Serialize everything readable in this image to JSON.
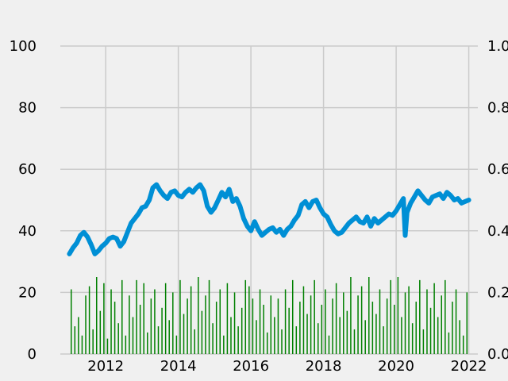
{
  "chart_data": {
    "type": "line",
    "title": "",
    "xlabel": "",
    "ylabel": "",
    "y2label": "",
    "xlim": [
      2010.75,
      2022.25
    ],
    "ylim": [
      0,
      100
    ],
    "y2lim": [
      0,
      1.0
    ],
    "x_ticks": [
      2012,
      2014,
      2016,
      2018,
      2020,
      2022
    ],
    "x_tick_labels": [
      "2012",
      "2014",
      "2016",
      "2018",
      "2020",
      "2022"
    ],
    "y_ticks": [
      0,
      20,
      40,
      60,
      80,
      100
    ],
    "y_tick_labels": [
      "0",
      "20",
      "40",
      "60",
      "80",
      "100"
    ],
    "y2_ticks": [
      0.0,
      0.2,
      0.4,
      0.6,
      0.8,
      1.0
    ],
    "y2_tick_labels": [
      "0.0",
      "0.2",
      "0.4",
      "0.6",
      "0.8",
      "1.0"
    ],
    "grid": true,
    "legend": "none",
    "series": [
      {
        "type": "line",
        "axis": "left",
        "color": "#008fd5",
        "x": [
          2011.0,
          2011.1,
          2011.2,
          2011.3,
          2011.4,
          2011.5,
          2011.6,
          2011.7,
          2011.8,
          2011.9,
          2012.0,
          2012.1,
          2012.2,
          2012.3,
          2012.4,
          2012.5,
          2012.6,
          2012.7,
          2012.8,
          2012.9,
          2013.0,
          2013.1,
          2013.2,
          2013.3,
          2013.4,
          2013.5,
          2013.6,
          2013.7,
          2013.8,
          2013.9,
          2014.0,
          2014.1,
          2014.2,
          2014.3,
          2014.4,
          2014.5,
          2014.6,
          2014.7,
          2014.8,
          2014.9,
          2015.0,
          2015.1,
          2015.2,
          2015.3,
          2015.4,
          2015.5,
          2015.6,
          2015.7,
          2015.8,
          2015.9,
          2016.0,
          2016.1,
          2016.2,
          2016.3,
          2016.4,
          2016.5,
          2016.6,
          2016.7,
          2016.8,
          2016.9,
          2017.0,
          2017.1,
          2017.2,
          2017.3,
          2017.4,
          2017.5,
          2017.6,
          2017.7,
          2017.8,
          2017.9,
          2018.0,
          2018.1,
          2018.2,
          2018.3,
          2018.4,
          2018.5,
          2018.6,
          2018.7,
          2018.8,
          2018.9,
          2019.0,
          2019.1,
          2019.2,
          2019.3,
          2019.4,
          2019.5,
          2019.6,
          2019.7,
          2019.8,
          2019.9,
          2020.0,
          2020.1,
          2020.2,
          2020.25,
          2020.3,
          2020.4,
          2020.5,
          2020.6,
          2020.7,
          2020.8,
          2020.9,
          2021.0,
          2021.1,
          2021.2,
          2021.3,
          2021.4,
          2021.5,
          2021.6,
          2021.7,
          2021.8,
          2021.9,
          2022.0
        ],
        "values": [
          32.5,
          34.5,
          36,
          38.5,
          39.5,
          38,
          35.5,
          32.5,
          33.5,
          35,
          36,
          37.5,
          38,
          37.5,
          35,
          36.5,
          39.5,
          42.5,
          44,
          45.5,
          47.5,
          48,
          50,
          54,
          55,
          53,
          51.5,
          50.5,
          52.5,
          53,
          51.5,
          51,
          52.5,
          53.5,
          52.5,
          54,
          55,
          53,
          48,
          46,
          47.5,
          50,
          52.5,
          51,
          53.5,
          49.5,
          50.5,
          48,
          44,
          41.5,
          40,
          43,
          40.5,
          38.5,
          39.5,
          40.5,
          41,
          39.5,
          40.5,
          38.5,
          40.5,
          41.5,
          43.5,
          45,
          48.5,
          49.5,
          47.5,
          49.5,
          50,
          47.5,
          45.5,
          44.5,
          42,
          40,
          39,
          39.5,
          41,
          42.5,
          43.5,
          44.5,
          43,
          42.5,
          44.5,
          41.5,
          44,
          42.5,
          43.5,
          44.5,
          45.5,
          45,
          46.5,
          48.5,
          50.5,
          38.5,
          46,
          49,
          51,
          53,
          51.5,
          50,
          49,
          51,
          51.5,
          52,
          50.5,
          52.5,
          51.5,
          50,
          50.5,
          49,
          49.5,
          50
        ]
      },
      {
        "type": "bar",
        "axis": "right",
        "color": "#008000",
        "x": [
          2011.05,
          2011.15,
          2011.25,
          2011.35,
          2011.45,
          2011.55,
          2011.65,
          2011.75,
          2011.85,
          2011.95,
          2012.05,
          2012.15,
          2012.25,
          2012.35,
          2012.45,
          2012.55,
          2012.65,
          2012.75,
          2012.85,
          2012.95,
          2013.05,
          2013.15,
          2013.25,
          2013.35,
          2013.45,
          2013.55,
          2013.65,
          2013.75,
          2013.85,
          2013.95,
          2014.05,
          2014.15,
          2014.25,
          2014.35,
          2014.45,
          2014.55,
          2014.65,
          2014.75,
          2014.85,
          2014.95,
          2015.05,
          2015.15,
          2015.25,
          2015.35,
          2015.45,
          2015.55,
          2015.65,
          2015.75,
          2015.85,
          2015.95,
          2016.05,
          2016.15,
          2016.25,
          2016.35,
          2016.45,
          2016.55,
          2016.65,
          2016.75,
          2016.85,
          2016.95,
          2017.05,
          2017.15,
          2017.25,
          2017.35,
          2017.45,
          2017.55,
          2017.65,
          2017.75,
          2017.85,
          2017.95,
          2018.05,
          2018.15,
          2018.25,
          2018.35,
          2018.45,
          2018.55,
          2018.65,
          2018.75,
          2018.85,
          2018.95,
          2019.05,
          2019.15,
          2019.25,
          2019.35,
          2019.45,
          2019.55,
          2019.65,
          2019.75,
          2019.85,
          2019.95,
          2020.05,
          2020.15,
          2020.25,
          2020.35,
          2020.45,
          2020.55,
          2020.65,
          2020.75,
          2020.85,
          2020.95,
          2021.05,
          2021.15,
          2021.25,
          2021.35,
          2021.45,
          2021.55,
          2021.65,
          2021.75,
          2021.85,
          2021.95
        ],
        "values": [
          0.21,
          0.09,
          0.12,
          0.06,
          0.19,
          0.22,
          0.08,
          0.25,
          0.14,
          0.23,
          0.05,
          0.21,
          0.17,
          0.1,
          0.24,
          0.06,
          0.19,
          0.12,
          0.24,
          0.16,
          0.23,
          0.07,
          0.18,
          0.21,
          0.09,
          0.15,
          0.23,
          0.11,
          0.2,
          0.06,
          0.24,
          0.13,
          0.18,
          0.22,
          0.08,
          0.25,
          0.14,
          0.19,
          0.24,
          0.1,
          0.17,
          0.21,
          0.06,
          0.23,
          0.12,
          0.2,
          0.09,
          0.15,
          0.24,
          0.22,
          0.18,
          0.11,
          0.21,
          0.16,
          0.07,
          0.19,
          0.12,
          0.18,
          0.08,
          0.21,
          0.15,
          0.24,
          0.09,
          0.17,
          0.22,
          0.13,
          0.19,
          0.24,
          0.1,
          0.16,
          0.21,
          0.06,
          0.18,
          0.23,
          0.12,
          0.2,
          0.14,
          0.25,
          0.08,
          0.19,
          0.22,
          0.11,
          0.25,
          0.17,
          0.13,
          0.21,
          0.09,
          0.18,
          0.24,
          0.16,
          0.25,
          0.12,
          0.2,
          0.22,
          0.1,
          0.17,
          0.24,
          0.08,
          0.21,
          0.15,
          0.23,
          0.12,
          0.19,
          0.24,
          0.07,
          0.17,
          0.21,
          0.11,
          0.06,
          0.2
        ]
      }
    ]
  }
}
